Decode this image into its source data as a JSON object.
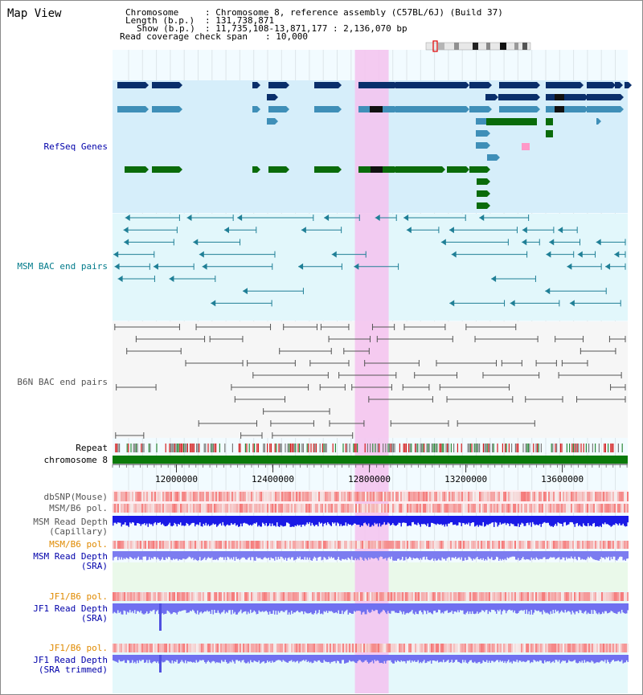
{
  "header": {
    "view_title": "Map View",
    "chromosome_label": "Chromosome",
    "chromosome_value": ": Chromosome 8, reference assembly (C57BL/6J) (Build 37)",
    "length_label": "Length (b.p.)",
    "length_value": ": 131,738,871",
    "show_label": "Show (b.p.)",
    "show_value": ": 11,735,108-13,871,177 : 2,136,070 bp",
    "coverage_label": "Read coverage check span",
    "coverage_value": ": 10,000"
  },
  "tracks": {
    "refseq": "RefSeq Genes",
    "msm_bac": "MSM BAC end pairs",
    "b6n_bac": "B6N BAC end pairs",
    "repeat": "Repeat",
    "chromosome": "chromosome 8",
    "dbsnp": "dbSNP(Mouse)",
    "msm_b6_pol_1": "MSM/B6 pol.",
    "msm_depth_cap_1": "MSM Read Depth",
    "msm_depth_cap_2": "(Capillary)",
    "msm_b6_pol_2": "MSM/B6 pol.",
    "msm_depth_sra_1": "MSM Read Depth",
    "msm_depth_sra_2": "(SRA)",
    "jf1_pol_1": "JF1/B6 pol.",
    "jf1_depth_sra_1": "JF1 Read Depth",
    "jf1_depth_sra_2": "(SRA)",
    "jf1_pol_2": "JF1/B6 pol.",
    "jf1_depth_trim_1": "JF1 Read Depth",
    "jf1_depth_trim_2": "(SRA trimmed)"
  },
  "axis": {
    "start_bp": 11735108,
    "end_bp": 13871177,
    "ticks": [
      "12000000",
      "12400000",
      "12800000",
      "13200000",
      "13600000"
    ],
    "tick_values": [
      12000000,
      12400000,
      12800000,
      13200000,
      13600000
    ],
    "highlight_range_bp": [
      12740000,
      12880000
    ]
  },
  "colors": {
    "refseq_dark": "#0a2f6b",
    "refseq_light": "#3f8fb8",
    "refseq_green": "#0a6b0a",
    "msm_bac": "#1f7f96",
    "b6n_bac": "#555555",
    "chromosome": "#0a7a0a",
    "highlight": "#f5c2ef",
    "label_blue": "#0000aa",
    "label_teal": "#007a8a",
    "label_gray": "#555555",
    "label_orange": "#e08a00"
  }
}
